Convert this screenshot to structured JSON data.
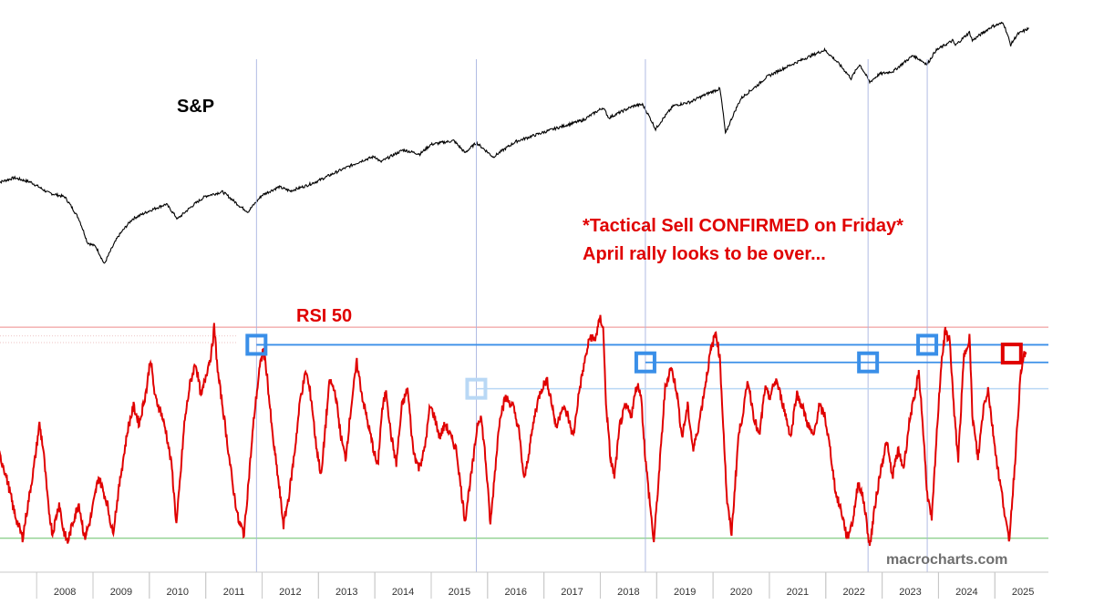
{
  "labels": {
    "sp": "S&P",
    "rsi": "RSI 50",
    "note_line1": "*Tactical Sell CONFIRMED on Friday*",
    "note_line2": "April rally looks to be over...",
    "watermark": "macrocharts.com"
  },
  "colors": {
    "price_line": "#000000",
    "rsi_line": "#e00000",
    "upper_band": "#f2a0a0",
    "lower_band": "#8fd08f",
    "signal_box": "#3a8fe8",
    "signal_box_faint": "#b9d8f5",
    "current_box": "#e00000",
    "signal_level": "#3a8fe8",
    "vertical_marker": "#a8b4e0",
    "axis_text": "#333333"
  },
  "chart_data": {
    "type": "line",
    "x_ticks": [
      "2008",
      "2009",
      "2010",
      "2011",
      "2012",
      "2013",
      "2014",
      "2015",
      "2016",
      "2017",
      "2018",
      "2019",
      "2020",
      "2021",
      "2022",
      "2023",
      "2024",
      "2025"
    ],
    "x_range": [
      2007.35,
      2025.95
    ],
    "series": [
      {
        "name": "S&P",
        "points": [
          [
            2007.3,
            1450
          ],
          [
            2007.6,
            1520
          ],
          [
            2007.9,
            1460
          ],
          [
            2008.2,
            1330
          ],
          [
            2008.5,
            1280
          ],
          [
            2008.75,
            1050
          ],
          [
            2008.9,
            850
          ],
          [
            2009.05,
            820
          ],
          [
            2009.2,
            700
          ],
          [
            2009.45,
            900
          ],
          [
            2009.7,
            1050
          ],
          [
            2010.0,
            1130
          ],
          [
            2010.3,
            1200
          ],
          [
            2010.5,
            1050
          ],
          [
            2010.8,
            1200
          ],
          [
            2011.0,
            1290
          ],
          [
            2011.3,
            1340
          ],
          [
            2011.6,
            1180
          ],
          [
            2011.75,
            1120
          ],
          [
            2012.0,
            1300
          ],
          [
            2012.3,
            1400
          ],
          [
            2012.5,
            1350
          ],
          [
            2012.8,
            1420
          ],
          [
            2013.0,
            1480
          ],
          [
            2013.4,
            1630
          ],
          [
            2013.8,
            1780
          ],
          [
            2014.0,
            1840
          ],
          [
            2014.1,
            1750
          ],
          [
            2014.5,
            1950
          ],
          [
            2014.8,
            1880
          ],
          [
            2015.0,
            2050
          ],
          [
            2015.4,
            2120
          ],
          [
            2015.6,
            1900
          ],
          [
            2015.8,
            2080
          ],
          [
            2016.1,
            1830
          ],
          [
            2016.5,
            2100
          ],
          [
            2016.9,
            2250
          ],
          [
            2017.3,
            2400
          ],
          [
            2017.7,
            2550
          ],
          [
            2018.05,
            2850
          ],
          [
            2018.15,
            2600
          ],
          [
            2018.6,
            2900
          ],
          [
            2018.75,
            2930
          ],
          [
            2018.98,
            2350
          ],
          [
            2019.3,
            2900
          ],
          [
            2019.6,
            3000
          ],
          [
            2019.9,
            3230
          ],
          [
            2020.12,
            3380
          ],
          [
            2020.22,
            2250
          ],
          [
            2020.5,
            3100
          ],
          [
            2020.8,
            3500
          ],
          [
            2020.95,
            3750
          ],
          [
            2021.3,
            4100
          ],
          [
            2021.7,
            4500
          ],
          [
            2021.98,
            4780
          ],
          [
            2022.2,
            4300
          ],
          [
            2022.45,
            3700
          ],
          [
            2022.6,
            4200
          ],
          [
            2022.78,
            3580
          ],
          [
            2022.95,
            3850
          ],
          [
            2023.2,
            3950
          ],
          [
            2023.55,
            4550
          ],
          [
            2023.8,
            4200
          ],
          [
            2023.95,
            4750
          ],
          [
            2024.25,
            5200
          ],
          [
            2024.3,
            4980
          ],
          [
            2024.55,
            5600
          ],
          [
            2024.6,
            5200
          ],
          [
            2024.95,
            5900
          ],
          [
            2025.15,
            6100
          ],
          [
            2025.28,
            5000
          ],
          [
            2025.4,
            5500
          ],
          [
            2025.6,
            5800
          ]
        ],
        "display": "log"
      },
      {
        "name": "RSI 50",
        "points": [
          [
            2007.3,
            52
          ],
          [
            2007.4,
            49
          ],
          [
            2007.5,
            44
          ],
          [
            2007.6,
            38
          ],
          [
            2007.75,
            32
          ],
          [
            2007.85,
            40
          ],
          [
            2007.95,
            48
          ],
          [
            2008.05,
            58
          ],
          [
            2008.12,
            52
          ],
          [
            2008.2,
            40
          ],
          [
            2008.28,
            33
          ],
          [
            2008.4,
            40
          ],
          [
            2008.47,
            34
          ],
          [
            2008.55,
            31
          ],
          [
            2008.65,
            36
          ],
          [
            2008.75,
            40
          ],
          [
            2008.85,
            32
          ],
          [
            2008.95,
            36
          ],
          [
            2009.1,
            46
          ],
          [
            2009.25,
            40
          ],
          [
            2009.35,
            33
          ],
          [
            2009.5,
            47
          ],
          [
            2009.62,
            57
          ],
          [
            2009.72,
            62
          ],
          [
            2009.82,
            58
          ],
          [
            2009.95,
            66
          ],
          [
            2010.02,
            73
          ],
          [
            2010.1,
            64
          ],
          [
            2010.2,
            61
          ],
          [
            2010.3,
            56
          ],
          [
            2010.4,
            48
          ],
          [
            2010.48,
            35
          ],
          [
            2010.55,
            46
          ],
          [
            2010.62,
            58
          ],
          [
            2010.72,
            67
          ],
          [
            2010.82,
            72
          ],
          [
            2010.92,
            64
          ],
          [
            2011.0,
            69
          ],
          [
            2011.1,
            74
          ],
          [
            2011.15,
            80
          ],
          [
            2011.22,
            69
          ],
          [
            2011.3,
            62
          ],
          [
            2011.38,
            54
          ],
          [
            2011.48,
            44
          ],
          [
            2011.58,
            36
          ],
          [
            2011.68,
            33
          ],
          [
            2011.78,
            48
          ],
          [
            2011.86,
            60
          ],
          [
            2011.95,
            70
          ],
          [
            2012.02,
            75
          ],
          [
            2012.08,
            70
          ],
          [
            2012.18,
            56
          ],
          [
            2012.28,
            46
          ],
          [
            2012.38,
            35
          ],
          [
            2012.48,
            42
          ],
          [
            2012.58,
            52
          ],
          [
            2012.68,
            64
          ],
          [
            2012.78,
            70
          ],
          [
            2012.88,
            63
          ],
          [
            2012.95,
            54
          ],
          [
            2013.05,
            46
          ],
          [
            2013.12,
            57
          ],
          [
            2013.2,
            68
          ],
          [
            2013.3,
            65
          ],
          [
            2013.4,
            55
          ],
          [
            2013.48,
            50
          ],
          [
            2013.58,
            62
          ],
          [
            2013.68,
            72
          ],
          [
            2013.78,
            64
          ],
          [
            2013.88,
            58
          ],
          [
            2013.98,
            52
          ],
          [
            2014.05,
            48
          ],
          [
            2014.12,
            60
          ],
          [
            2014.2,
            66
          ],
          [
            2014.28,
            56
          ],
          [
            2014.38,
            49
          ],
          [
            2014.48,
            62
          ],
          [
            2014.58,
            66
          ],
          [
            2014.68,
            52
          ],
          [
            2014.78,
            48
          ],
          [
            2014.88,
            52
          ],
          [
            2014.98,
            62
          ],
          [
            2015.05,
            60
          ],
          [
            2015.15,
            55
          ],
          [
            2015.25,
            58
          ],
          [
            2015.35,
            55
          ],
          [
            2015.45,
            52
          ],
          [
            2015.52,
            44
          ],
          [
            2015.6,
            36
          ],
          [
            2015.65,
            41
          ],
          [
            2015.75,
            50
          ],
          [
            2015.82,
            58
          ],
          [
            2015.88,
            60
          ],
          [
            2015.95,
            52
          ],
          [
            2016.0,
            44
          ],
          [
            2016.05,
            35
          ],
          [
            2016.15,
            50
          ],
          [
            2016.22,
            60
          ],
          [
            2016.32,
            64
          ],
          [
            2016.45,
            62
          ],
          [
            2016.55,
            57
          ],
          [
            2016.65,
            45
          ],
          [
            2016.75,
            53
          ],
          [
            2016.85,
            61
          ],
          [
            2016.95,
            66
          ],
          [
            2017.05,
            68
          ],
          [
            2017.12,
            64
          ],
          [
            2017.22,
            57
          ],
          [
            2017.32,
            62
          ],
          [
            2017.42,
            60
          ],
          [
            2017.52,
            55
          ],
          [
            2017.62,
            65
          ],
          [
            2017.72,
            72
          ],
          [
            2017.82,
            78
          ],
          [
            2017.9,
            77
          ],
          [
            2018.0,
            82
          ],
          [
            2018.05,
            80
          ],
          [
            2018.1,
            63
          ],
          [
            2018.18,
            50
          ],
          [
            2018.25,
            46
          ],
          [
            2018.35,
            58
          ],
          [
            2018.45,
            62
          ],
          [
            2018.55,
            60
          ],
          [
            2018.65,
            67
          ],
          [
            2018.72,
            65
          ],
          [
            2018.8,
            50
          ],
          [
            2018.88,
            40
          ],
          [
            2018.95,
            31
          ],
          [
            2019.05,
            48
          ],
          [
            2019.15,
            66
          ],
          [
            2019.25,
            71
          ],
          [
            2019.35,
            66
          ],
          [
            2019.45,
            55
          ],
          [
            2019.55,
            62
          ],
          [
            2019.65,
            52
          ],
          [
            2019.75,
            58
          ],
          [
            2019.85,
            66
          ],
          [
            2019.95,
            74
          ],
          [
            2020.05,
            79
          ],
          [
            2020.12,
            73
          ],
          [
            2020.18,
            58
          ],
          [
            2020.25,
            40
          ],
          [
            2020.33,
            33
          ],
          [
            2020.45,
            55
          ],
          [
            2020.55,
            62
          ],
          [
            2020.62,
            68
          ],
          [
            2020.72,
            60
          ],
          [
            2020.82,
            55
          ],
          [
            2020.92,
            66
          ],
          [
            2021.0,
            64
          ],
          [
            2021.12,
            68
          ],
          [
            2021.25,
            62
          ],
          [
            2021.38,
            55
          ],
          [
            2021.48,
            65
          ],
          [
            2021.58,
            62
          ],
          [
            2021.68,
            58
          ],
          [
            2021.78,
            55
          ],
          [
            2021.88,
            62
          ],
          [
            2021.98,
            60
          ],
          [
            2022.08,
            52
          ],
          [
            2022.18,
            42
          ],
          [
            2022.28,
            38
          ],
          [
            2022.38,
            32
          ],
          [
            2022.48,
            36
          ],
          [
            2022.58,
            45
          ],
          [
            2022.68,
            40
          ],
          [
            2022.78,
            30
          ],
          [
            2022.88,
            40
          ],
          [
            2022.98,
            48
          ],
          [
            2023.08,
            54
          ],
          [
            2023.18,
            46
          ],
          [
            2023.28,
            52
          ],
          [
            2023.38,
            48
          ],
          [
            2023.5,
            60
          ],
          [
            2023.58,
            64
          ],
          [
            2023.65,
            70
          ],
          [
            2023.72,
            58
          ],
          [
            2023.8,
            42
          ],
          [
            2023.88,
            36
          ],
          [
            2023.98,
            58
          ],
          [
            2024.05,
            72
          ],
          [
            2024.12,
            79
          ],
          [
            2024.2,
            77
          ],
          [
            2024.28,
            60
          ],
          [
            2024.35,
            50
          ],
          [
            2024.45,
            73
          ],
          [
            2024.55,
            78
          ],
          [
            2024.6,
            60
          ],
          [
            2024.7,
            50
          ],
          [
            2024.8,
            62
          ],
          [
            2024.88,
            66
          ],
          [
            2024.95,
            58
          ],
          [
            2025.05,
            48
          ],
          [
            2025.15,
            40
          ],
          [
            2025.25,
            31
          ],
          [
            2025.35,
            48
          ],
          [
            2025.45,
            68
          ],
          [
            2025.52,
            74
          ],
          [
            2025.55,
            74
          ]
        ],
        "bands": {
          "upper": 80,
          "lower": 32
        }
      }
    ],
    "signal_levels": [
      76,
      72,
      66
    ],
    "signal_markers": [
      {
        "x": 2011.9,
        "y": 76,
        "style": "strong"
      },
      {
        "x": 2015.8,
        "y": 66,
        "style": "faint"
      },
      {
        "x": 2018.8,
        "y": 72,
        "style": "strong"
      },
      {
        "x": 2022.75,
        "y": 72,
        "style": "strong"
      },
      {
        "x": 2023.8,
        "y": 76,
        "style": "strong"
      },
      {
        "x": 2025.3,
        "y": 74,
        "style": "current"
      }
    ],
    "vertical_markers": [
      2011.9,
      2015.8,
      2018.8,
      2022.75,
      2023.8
    ],
    "grid": false
  }
}
